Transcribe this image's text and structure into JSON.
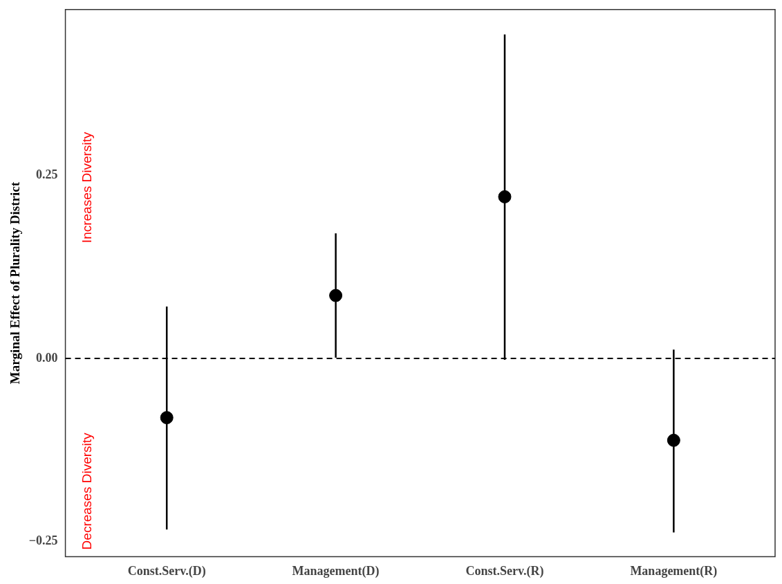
{
  "chart_data": {
    "type": "scatter",
    "ylabel": "Marginal Effect of Plurality District",
    "categories": [
      "Const.Serv.(D)",
      "Management(D)",
      "Const.Serv.(R)",
      "Management(R)"
    ],
    "values": [
      -0.081,
      0.086,
      0.221,
      -0.112
    ],
    "errors": [
      [
        -0.234,
        0.071
      ],
      [
        0.001,
        0.171
      ],
      [
        -0.002,
        0.443
      ],
      [
        -0.238,
        0.012
      ]
    ],
    "color": "#000000",
    "marker": "circle",
    "ylim": [
      -0.271,
      0.477
    ],
    "yticks": [
      {
        "value": -0.25,
        "label": "−0.25"
      },
      {
        "value": 0,
        "label": "0.00"
      },
      {
        "value": 0.25,
        "label": "0.25"
      }
    ],
    "ref_lines": [
      {
        "axis": "y",
        "value": 0,
        "line_style": "dashed",
        "color": "#000000"
      }
    ],
    "annotations": [
      "Increases Diversity",
      "Decreases Diversity"
    ]
  }
}
